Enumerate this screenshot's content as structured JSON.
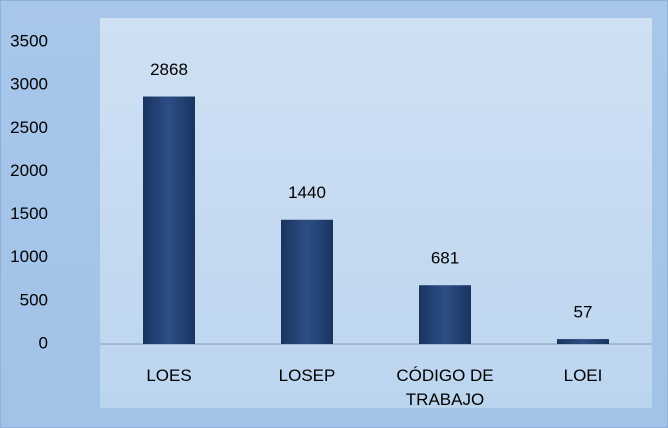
{
  "chart_data": {
    "type": "bar",
    "categories": [
      "LOES",
      "LOSEP",
      "CÓDIGO DE TRABAJO",
      "LOEI"
    ],
    "values": [
      2868,
      1440,
      681,
      57
    ],
    "color": "#22406f",
    "ylim": [
      0,
      3500
    ],
    "yticks": [
      0,
      500,
      1000,
      1500,
      2000,
      2500,
      3000,
      3500
    ],
    "grid": false
  }
}
